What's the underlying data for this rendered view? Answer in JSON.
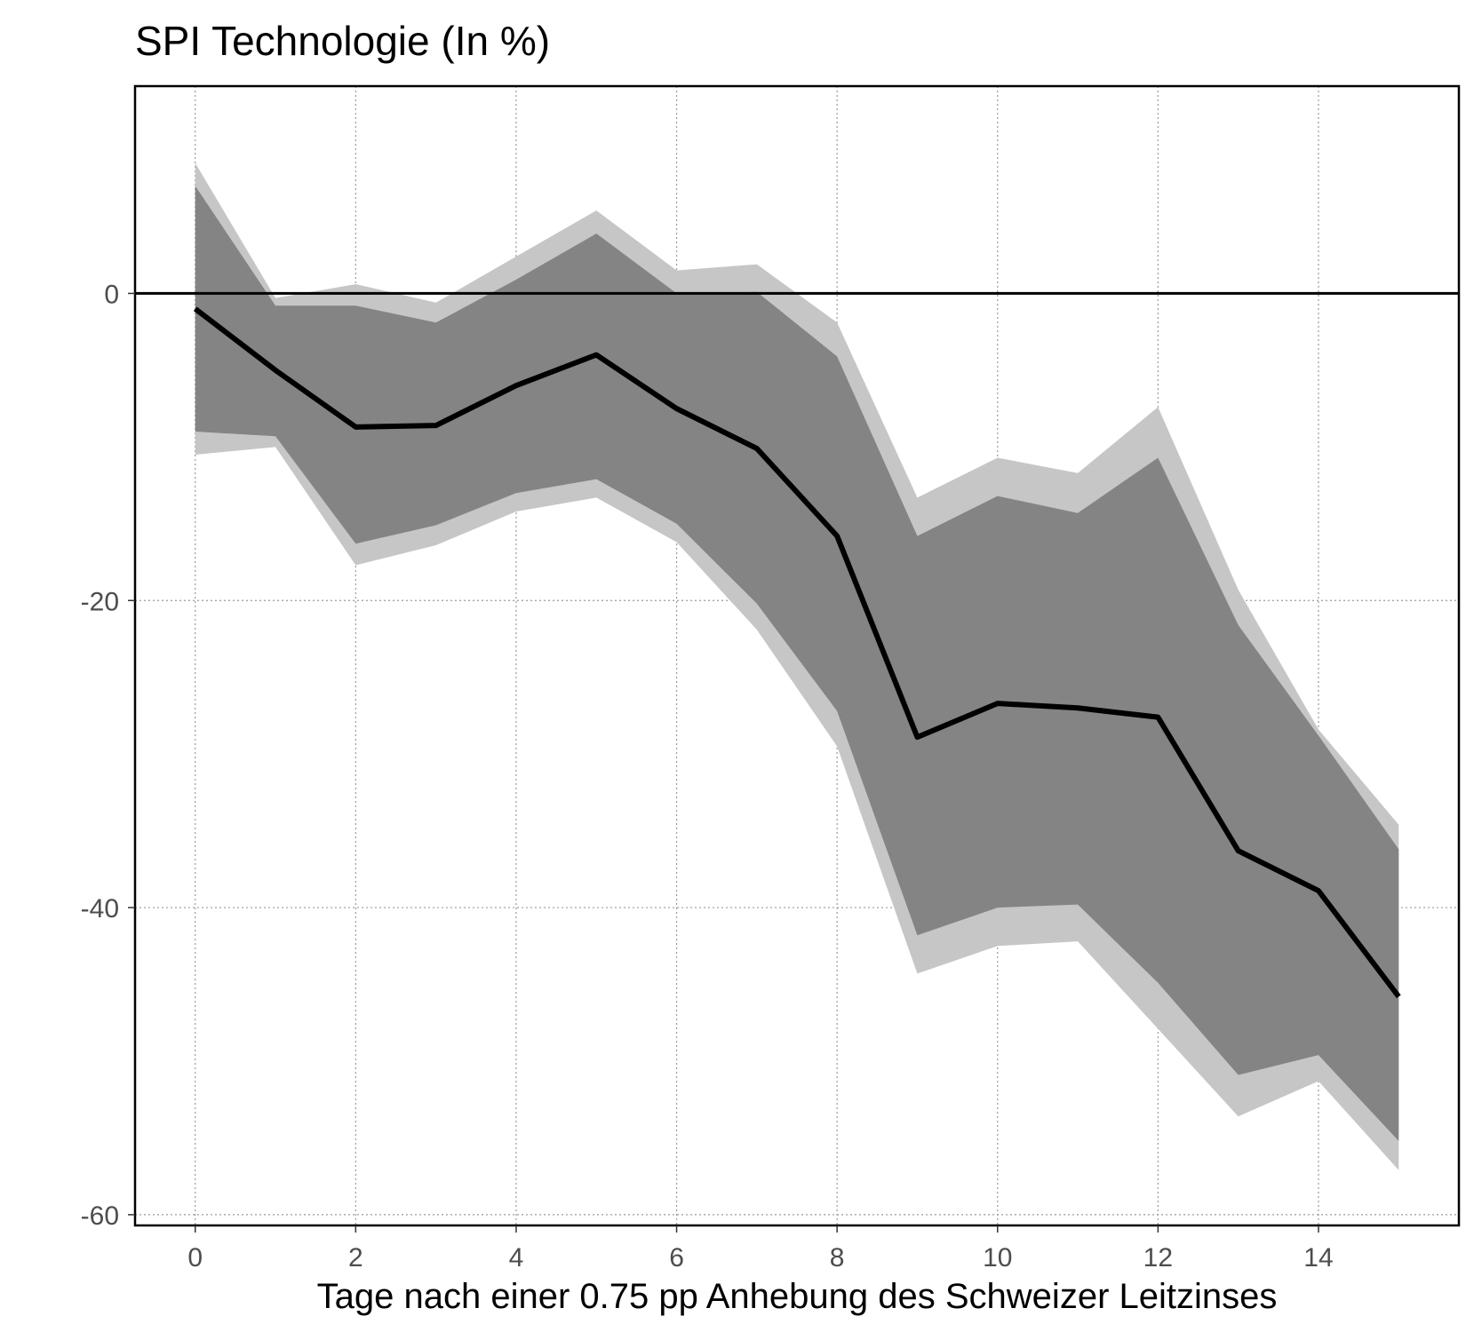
{
  "chart_data": {
    "type": "line",
    "title": "SPI Technologie (In %)",
    "xlabel": "Tage nach einer 0.75 pp Anhebung des Schweizer Leitzinses",
    "ylabel": "",
    "x": [
      0,
      1,
      2,
      3,
      4,
      5,
      6,
      7,
      8,
      9,
      10,
      11,
      12,
      13,
      14,
      15
    ],
    "xlim": [
      -0.75,
      15.75
    ],
    "ylim": [
      -60.7,
      13.5
    ],
    "xticks": [
      0,
      2,
      4,
      6,
      8,
      10,
      12,
      14
    ],
    "yticks": [
      0,
      -20,
      -40,
      -60
    ],
    "xtick_labels": [
      "0",
      "2",
      "4",
      "6",
      "8",
      "10",
      "12",
      "14"
    ],
    "ytick_labels": [
      "0",
      "-20",
      "-40",
      "-60"
    ],
    "grid": true,
    "reference_line": 0,
    "series": [
      {
        "values": [
          -1,
          -5,
          -8.7,
          -8.6,
          -6,
          -4,
          -7.5,
          -10.1,
          -15.8,
          -28.9,
          -26.7,
          -27,
          -27.6,
          -36.3,
          -38.9,
          -45.8
        ]
      }
    ],
    "bands": [
      {
        "level": "outer",
        "upper": [
          8.5,
          -0.3,
          0.6,
          -0.6,
          2.4,
          5.4,
          1.5,
          1.9,
          -1.9,
          -13.3,
          -10.7,
          -11.7,
          -7.4,
          -19.3,
          -28.4,
          -34.6
        ],
        "lower": [
          -10.5,
          -10,
          -17.7,
          -16.4,
          -14.2,
          -13.3,
          -16.2,
          -21.9,
          -29.5,
          -44.3,
          -42.5,
          -42.2,
          -47.9,
          -53.6,
          -51.3,
          -57.1
        ]
      },
      {
        "level": "inner",
        "upper": [
          7,
          -0.8,
          -0.8,
          -1.9,
          0.9,
          3.9,
          0,
          0.1,
          -4.1,
          -15.8,
          -13.2,
          -14.3,
          -10.7,
          -21.6,
          -28.8,
          -36.2
        ],
        "lower": [
          -9,
          -9.3,
          -16.3,
          -15.1,
          -13,
          -12.1,
          -15,
          -20.2,
          -27.2,
          -41.8,
          -40,
          -39.8,
          -44.9,
          -50.9,
          -49.6,
          -55.2
        ]
      }
    ],
    "colors": {
      "outer_band": "#c6c6c6",
      "inner_band": "#848484",
      "line": "#000000",
      "zero_line": "#000000"
    }
  }
}
